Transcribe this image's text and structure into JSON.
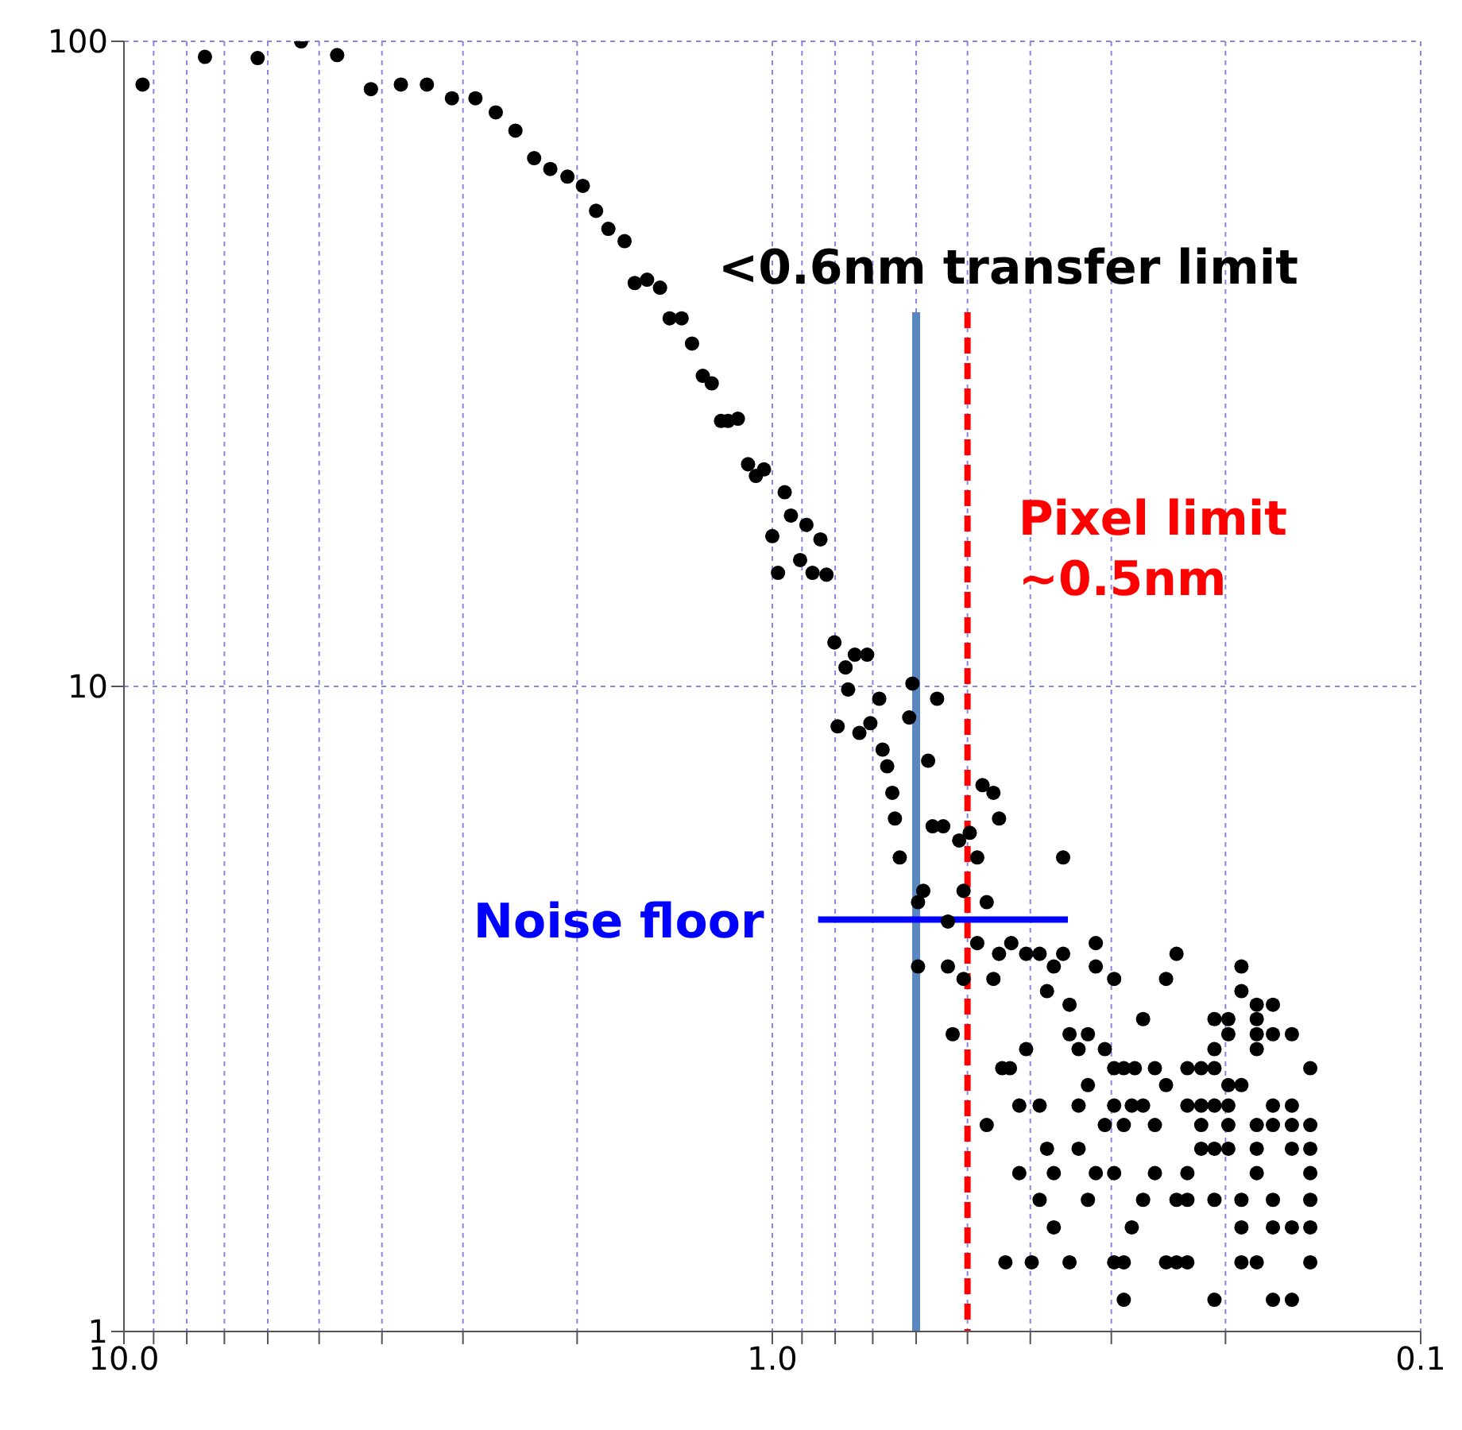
{
  "chart_data": {
    "type": "scatter",
    "log": "xy",
    "grid": true,
    "xlim": [
      10,
      0.1
    ],
    "ylim": [
      1,
      100
    ],
    "xticks": [
      {
        "value": 10,
        "label": "10.0"
      },
      {
        "value": 9,
        "label": null
      },
      {
        "value": 8,
        "label": null
      },
      {
        "value": 7,
        "label": null
      },
      {
        "value": 6,
        "label": null
      },
      {
        "value": 5,
        "label": null
      },
      {
        "value": 4,
        "label": null
      },
      {
        "value": 3,
        "label": null
      },
      {
        "value": 2,
        "label": null
      },
      {
        "value": 1,
        "label": "1.0"
      },
      {
        "value": 0.9,
        "label": null
      },
      {
        "value": 0.8,
        "label": null
      },
      {
        "value": 0.7,
        "label": null
      },
      {
        "value": 0.6,
        "label": null
      },
      {
        "value": 0.5,
        "label": null
      },
      {
        "value": 0.4,
        "label": null
      },
      {
        "value": 0.3,
        "label": null
      },
      {
        "value": 0.2,
        "label": null
      },
      {
        "value": 0.1,
        "label": "0.1"
      }
    ],
    "yticks": [
      1,
      10,
      100
    ],
    "series": [
      {
        "type": "scatter",
        "marker": "circle",
        "color": "#000000",
        "x": [
          9.36,
          7.5,
          6.22,
          5.33,
          4.69,
          4.16,
          3.74,
          3.41,
          3.12,
          2.87,
          2.67,
          2.49,
          2.33,
          2.2,
          2.07,
          1.96,
          1.87,
          1.79,
          1.69,
          1.63,
          1.56,
          1.49,
          1.44,
          1.38,
          1.33,
          1.28,
          1.24,
          1.2,
          1.17,
          1.13,
          1.09,
          1.06,
          1.03,
          0.957,
          0.936,
          0.886,
          0.843,
          1.0,
          0.906,
          0.98,
          0.867,
          0.825,
          0.802,
          0.771,
          0.746,
          0.714,
          0.764,
          0.608,
          0.557,
          0.684,
          0.793,
          0.734,
          0.706,
          0.615,
          0.676,
          0.665,
          0.653,
          0.575,
          0.474,
          0.456,
          0.647,
          0.447,
          0.566,
          0.545,
          0.515,
          0.496,
          0.636,
          0.483,
          0.356,
          0.596,
          0.585,
          0.507,
          0.467,
          0.536,
          0.483,
          0.428,
          0.447,
          0.406,
          0.387,
          0.356,
          0.317,
          0.238,
          0.596,
          0.536,
          0.368,
          0.317,
          0.189,
          0.507,
          0.456,
          0.297,
          0.247,
          0.377,
          0.189,
          0.348,
          0.179,
          0.169,
          0.268,
          0.208,
          0.198,
          0.179,
          0.527,
          0.348,
          0.326,
          0.198,
          0.179,
          0.169,
          0.158,
          0.406,
          0.337,
          0.307,
          0.208,
          0.179,
          0.442,
          0.43,
          0.297,
          0.287,
          0.276,
          0.257,
          0.229,
          0.218,
          0.208,
          0.148,
          0.326,
          0.247,
          0.198,
          0.189,
          0.416,
          0.387,
          0.337,
          0.297,
          0.279,
          0.268,
          0.229,
          0.218,
          0.208,
          0.198,
          0.169,
          0.158,
          0.467,
          0.307,
          0.287,
          0.257,
          0.218,
          0.198,
          0.179,
          0.169,
          0.158,
          0.148,
          0.377,
          0.337,
          0.218,
          0.208,
          0.198,
          0.179,
          0.158,
          0.148,
          0.416,
          0.368,
          0.317,
          0.297,
          0.257,
          0.229,
          0.179,
          0.148,
          0.387,
          0.326,
          0.268,
          0.238,
          0.229,
          0.208,
          0.189,
          0.169,
          0.148,
          0.368,
          0.279,
          0.189,
          0.169,
          0.158,
          0.148,
          0.437,
          0.398,
          0.348,
          0.297,
          0.287,
          0.247,
          0.238,
          0.229,
          0.189,
          0.179,
          0.148,
          0.287,
          0.208,
          0.169,
          0.158
        ],
        "values": [
          85.7,
          94.6,
          94.2,
          100,
          95.2,
          84.3,
          85.7,
          85.7,
          81.6,
          81.6,
          77.6,
          72.7,
          65.9,
          63.4,
          61.7,
          59.7,
          54.6,
          51.2,
          49.0,
          42.2,
          42.7,
          41.5,
          37.2,
          37.2,
          34.0,
          30.3,
          29.5,
          25.8,
          25.8,
          26.0,
          22.1,
          21.2,
          21.7,
          20.0,
          18.4,
          17.8,
          16.9,
          17.1,
          15.7,
          15.0,
          15.0,
          14.9,
          11.7,
          10.7,
          11.2,
          11.2,
          9.89,
          10.1,
          9.57,
          9.57,
          8.67,
          8.47,
          8.77,
          8.95,
          7.98,
          7.52,
          6.84,
          7.67,
          7.03,
          6.84,
          6.24,
          6.24,
          6.07,
          6.07,
          5.77,
          5.93,
          5.43,
          5.43,
          5.43,
          4.63,
          4.82,
          4.82,
          4.63,
          4.32,
          4.0,
          4.0,
          3.85,
          3.85,
          3.85,
          3.85,
          4.0,
          3.85,
          3.68,
          3.68,
          3.68,
          3.68,
          3.68,
          3.52,
          3.52,
          3.52,
          3.52,
          3.37,
          3.37,
          3.21,
          3.21,
          3.21,
          3.05,
          3.05,
          3.05,
          3.05,
          2.89,
          2.89,
          2.89,
          2.89,
          2.89,
          2.89,
          2.89,
          2.74,
          2.74,
          2.74,
          2.74,
          2.74,
          2.56,
          2.56,
          2.56,
          2.56,
          2.56,
          2.56,
          2.56,
          2.56,
          2.56,
          2.56,
          2.41,
          2.41,
          2.41,
          2.41,
          2.24,
          2.24,
          2.24,
          2.24,
          2.24,
          2.24,
          2.24,
          2.24,
          2.24,
          2.24,
          2.24,
          2.24,
          2.09,
          2.09,
          2.09,
          2.09,
          2.09,
          2.09,
          2.09,
          2.09,
          2.09,
          2.09,
          1.92,
          1.92,
          1.92,
          1.92,
          1.92,
          1.92,
          1.92,
          1.92,
          1.76,
          1.76,
          1.76,
          1.76,
          1.76,
          1.76,
          1.76,
          1.76,
          1.6,
          1.6,
          1.6,
          1.6,
          1.6,
          1.6,
          1.6,
          1.6,
          1.6,
          1.45,
          1.45,
          1.45,
          1.45,
          1.45,
          1.45,
          1.28,
          1.28,
          1.28,
          1.28,
          1.28,
          1.28,
          1.28,
          1.28,
          1.28,
          1.28,
          1.28,
          1.12,
          1.12,
          1.12,
          1.12
        ]
      },
      {
        "type": "line",
        "name": "Noise floor",
        "color": "#0000ff",
        "x": [
          0.85,
          0.35
        ],
        "values": [
          4.35,
          4.35
        ]
      }
    ],
    "ref_lines": [
      {
        "axis": "x",
        "value": 0.6,
        "label": "<0.6nm transfer limit",
        "color": "#5b87c0",
        "line_style": "solid"
      },
      {
        "axis": "x",
        "value": 0.5,
        "label": "Pixel limit ~0.5nm",
        "color": "#ff0000",
        "line_style": "dashed"
      }
    ]
  }
}
